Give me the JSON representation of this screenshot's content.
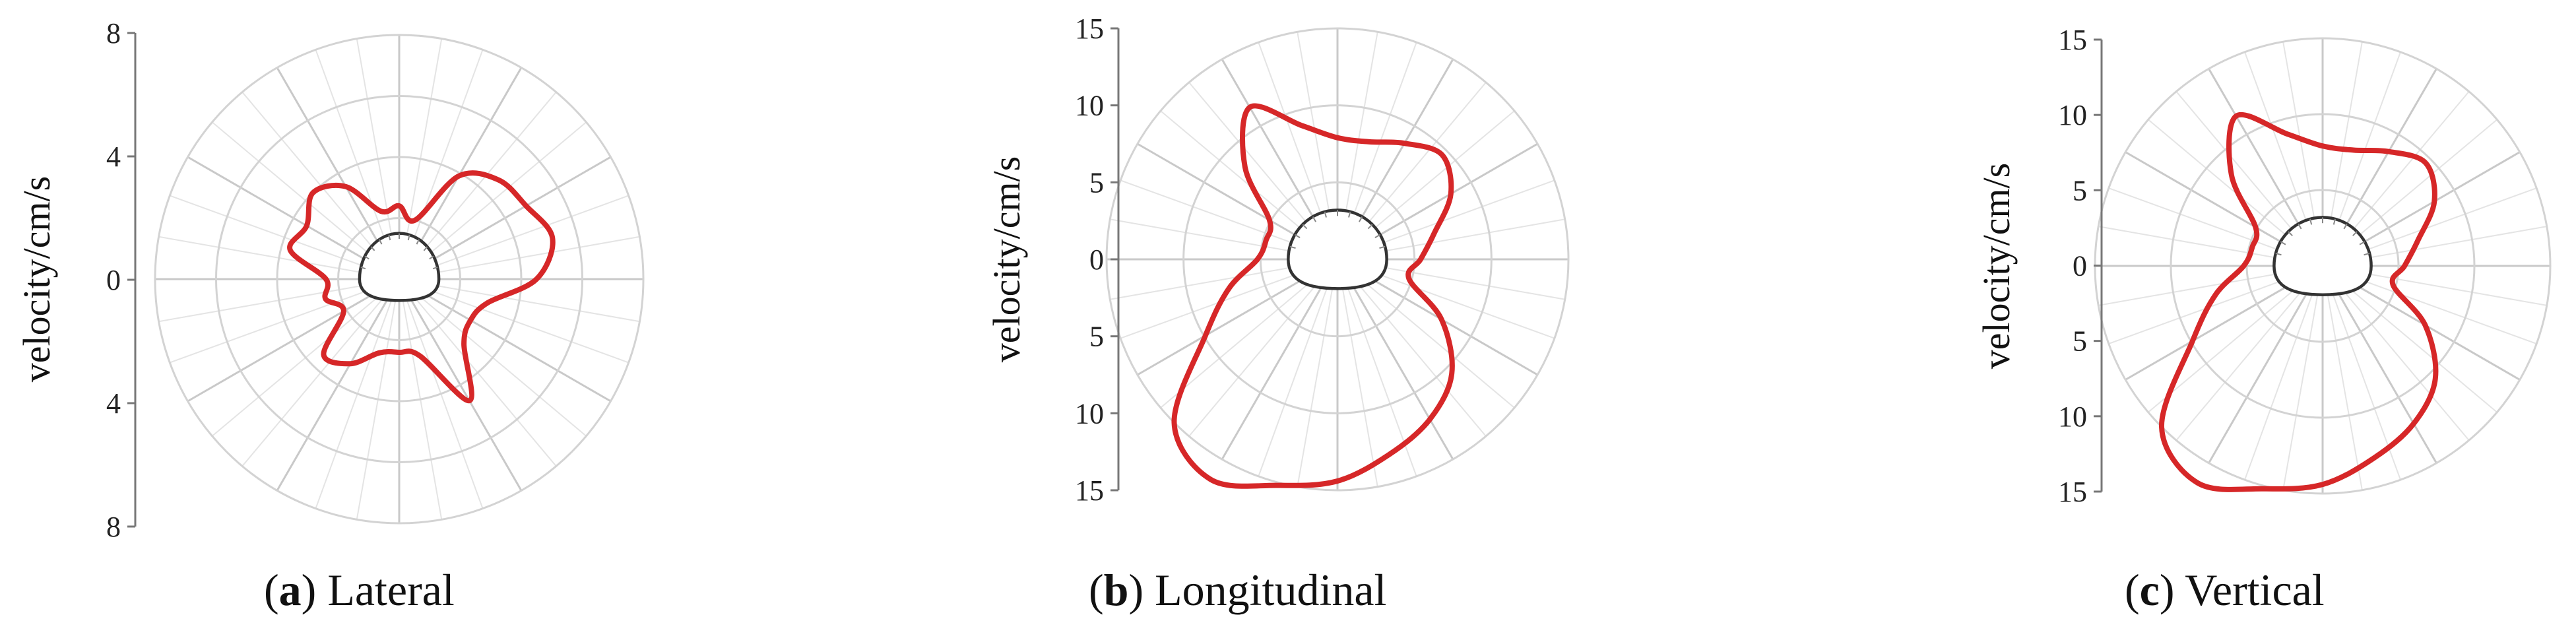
{
  "chart_data": [
    {
      "type": "polar-radar",
      "panel": "a",
      "caption_letter": "a",
      "caption_text": "Lateral",
      "ylabel": "velocity/cm/s",
      "y_ticks": [
        "8",
        "4",
        "0",
        "4",
        "8"
      ],
      "rmax": 8,
      "rings": [
        2,
        4,
        6,
        8
      ],
      "spokes_deg": 30,
      "minor_spokes_deg": 10,
      "series": [
        {
          "color": "#d62728",
          "angles_deg": [
            0,
            15,
            30,
            45,
            60,
            75,
            90,
            105,
            120,
            135,
            150,
            165,
            180,
            195,
            210,
            225,
            240,
            255,
            270,
            285,
            300,
            315,
            330,
            345
          ],
          "values": [
            4.5,
            5.2,
            4.8,
            4.6,
            3.9,
            2.0,
            2.4,
            2.3,
            3.5,
            4.0,
            3.5,
            3.7,
            2.4,
            2.5,
            2.1,
            3.5,
            3.2,
            2.5,
            2.4,
            2.6,
            4.6,
            3.0,
            2.7,
            3.0
          ]
        }
      ],
      "tunnel": {
        "color": "#333333",
        "half_width": 1.3,
        "crown_height": 1.5,
        "floor_depth": 0.7
      }
    },
    {
      "type": "polar-radar",
      "panel": "b",
      "caption_letter": "b",
      "caption_text": "Longitudinal",
      "ylabel": "velocity/cm/s",
      "y_ticks": [
        "15",
        "10",
        "5",
        "0",
        "5",
        "10",
        "15"
      ],
      "rmax": 15,
      "rings": [
        5,
        10,
        15
      ],
      "spokes_deg": 30,
      "minor_spokes_deg": 10,
      "series": [
        {
          "color": "#d62728",
          "angles_deg": [
            0,
            15,
            30,
            45,
            60,
            75,
            90,
            105,
            120,
            135,
            150,
            165,
            180,
            195,
            210,
            225,
            240,
            255,
            270,
            285,
            300,
            315,
            330,
            345
          ],
          "values": [
            5.4,
            6.5,
            8.5,
            9.6,
            8.7,
            7.9,
            7.9,
            9.0,
            11.4,
            8.5,
            5.1,
            4.8,
            5.2,
            7.3,
            9.9,
            15.0,
            16.5,
            15.2,
            14.4,
            13.1,
            12.0,
            10.5,
            7.8,
            4.8
          ]
        }
      ],
      "tunnel": {
        "color": "#333333",
        "half_width": 3.2,
        "crown_height": 3.2,
        "floor_depth": 1.9
      }
    },
    {
      "type": "polar-radar",
      "panel": "c",
      "caption_letter": "c",
      "caption_text": "Vertical",
      "ylabel": "velocity/cm/s",
      "y_ticks": [
        "15",
        "10",
        "5",
        "0",
        "5",
        "10",
        "15"
      ],
      "rmax": 15,
      "rings": [
        5,
        10,
        15
      ],
      "spokes_deg": 30,
      "minor_spokes_deg": 10,
      "series": [
        {
          "color": "#d62728",
          "angles_deg": [
            0,
            15,
            30,
            45,
            60,
            75,
            90,
            105,
            120,
            135,
            150,
            165,
            180,
            195,
            210,
            225,
            240,
            255,
            270,
            285,
            300,
            315,
            330,
            345
          ],
          "values": [
            5.4,
            6.5,
            8.5,
            9.6,
            8.7,
            7.9,
            7.9,
            9.0,
            11.4,
            8.5,
            5.1,
            4.8,
            5.2,
            7.3,
            9.9,
            15.0,
            16.5,
            15.2,
            14.4,
            13.1,
            12.0,
            10.5,
            7.8,
            4.8
          ]
        }
      ],
      "tunnel": {
        "color": "#333333",
        "half_width": 3.2,
        "crown_height": 3.2,
        "floor_depth": 1.9
      }
    }
  ]
}
